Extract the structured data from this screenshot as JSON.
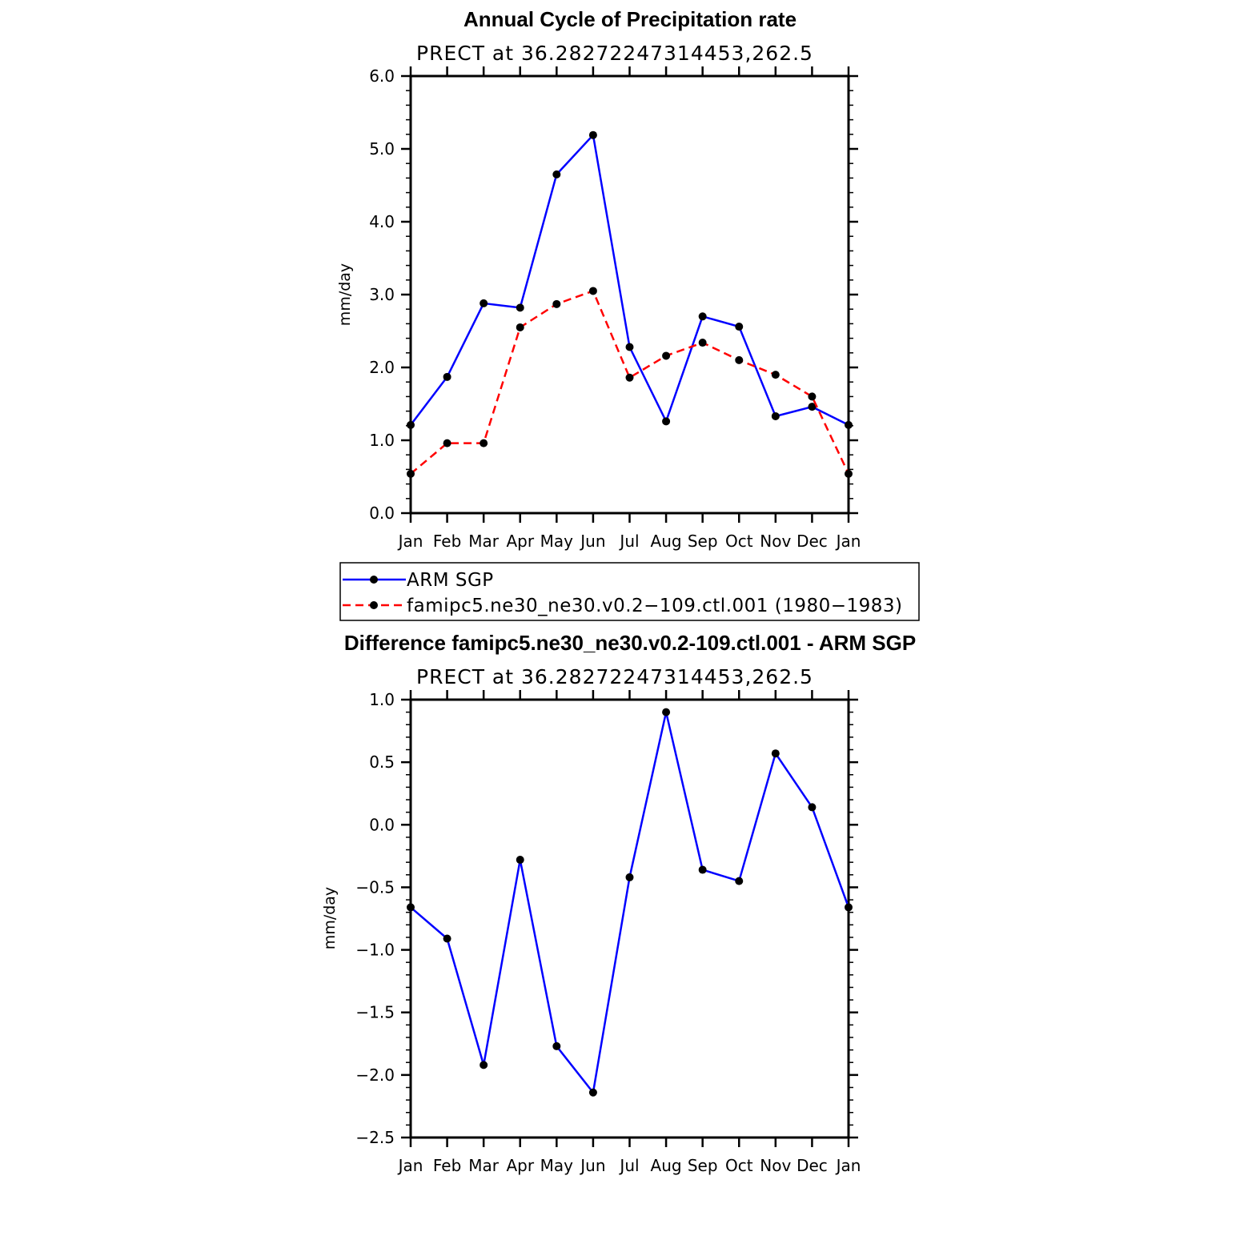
{
  "chart_data": [
    {
      "type": "line",
      "title": "Annual Cycle of Precipitation rate",
      "subtitle": "PRECT at 36.28272247314453,262.5",
      "xlabel": "",
      "ylabel": "mm/day",
      "categories": [
        "Jan",
        "Feb",
        "Mar",
        "Apr",
        "May",
        "Jun",
        "Jul",
        "Aug",
        "Sep",
        "Oct",
        "Nov",
        "Dec",
        "Jan"
      ],
      "ylim": [
        0,
        6
      ],
      "yticks": [
        "0.0",
        "1.0",
        "2.0",
        "3.0",
        "4.0",
        "5.0",
        "6.0"
      ],
      "legend_position": "bottom",
      "series": [
        {
          "name": "ARM SGP",
          "color": "#0000ff",
          "style": "solid",
          "values": [
            1.21,
            1.87,
            2.88,
            2.82,
            4.65,
            5.19,
            2.28,
            1.26,
            2.7,
            2.56,
            1.33,
            1.46,
            1.21
          ]
        },
        {
          "name": "famipc5.ne30_ne30.v0.2−109.ctl.001 (1980−1983)",
          "color": "#ff0000",
          "style": "dashed",
          "values": [
            0.54,
            0.96,
            0.96,
            2.55,
            2.87,
            3.05,
            1.86,
            2.16,
            2.34,
            2.1,
            1.9,
            1.6,
            0.54
          ]
        }
      ]
    },
    {
      "type": "line",
      "title": "Difference famipc5.ne30_ne30.v0.2-109.ctl.001 - ARM SGP",
      "subtitle": "PRECT at 36.28272247314453,262.5",
      "xlabel": "",
      "ylabel": "mm/day",
      "categories": [
        "Jan",
        "Feb",
        "Mar",
        "Apr",
        "May",
        "Jun",
        "Jul",
        "Aug",
        "Sep",
        "Oct",
        "Nov",
        "Dec",
        "Jan"
      ],
      "ylim": [
        -2.5,
        1.0
      ],
      "yticks": [
        "−2.5",
        "−2.0",
        "−1.5",
        "−1.0",
        "−0.5",
        "0.0",
        "0.5",
        "1.0"
      ],
      "series": [
        {
          "color": "#0000ff",
          "style": "solid",
          "values": [
            -0.66,
            -0.91,
            -1.92,
            -0.28,
            -1.77,
            -2.14,
            -0.42,
            0.9,
            -0.36,
            -0.45,
            0.57,
            0.14,
            -0.66
          ]
        }
      ]
    }
  ]
}
